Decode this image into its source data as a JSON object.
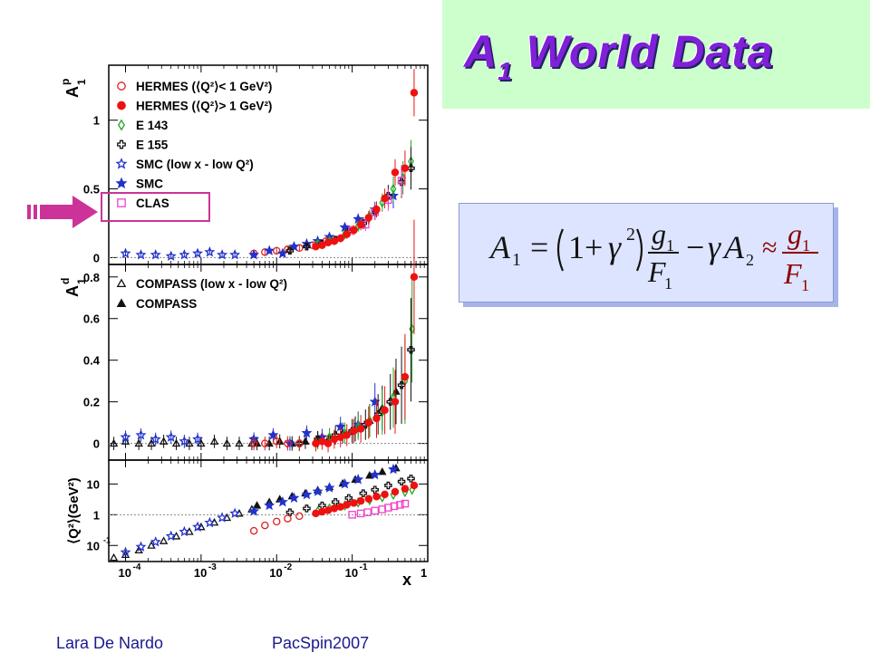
{
  "slide": {
    "title_main": "A",
    "title_sub": "1",
    "title_rest": " World Data",
    "footer_author": "Lara De Nardo",
    "footer_conference": "PacSpin2007",
    "colors": {
      "title": "#8020d8",
      "title_bg": "#ccffcc",
      "footer": "#1a1a8c",
      "formula_text": "#141414",
      "formula_approx": "#8b0000",
      "arrow": "#cc3399",
      "highlight_box": "#cc3399"
    }
  },
  "formula": {
    "lhs": "A",
    "lhs_sub": "1",
    "eq": "=",
    "one_plus": "1+",
    "gamma": "γ",
    "exp2": "2",
    "num": "g",
    "num_sub": "1",
    "den": "F",
    "den_sub": "1",
    "minus": "−",
    "gamma2": "γ",
    "a2": "A",
    "a2_sub": "2",
    "approx": "≈",
    "rnum": "g",
    "rnum_sub": "1",
    "rden": "F",
    "rden_sub": "1"
  },
  "chart_data": {
    "type": "scatter",
    "x_axis": {
      "label": "x",
      "scale": "log",
      "range": [
        6e-05,
        1
      ],
      "ticks": [
        "10",
        "10",
        "10",
        "10",
        "1"
      ],
      "tick_exps": [
        "-4",
        "-3",
        "-2",
        "-1",
        ""
      ]
    },
    "panels": [
      {
        "id": "proton",
        "ylabel": "A",
        "ylabel_sup": "p",
        "ylabel_sub": "1",
        "ylim": [
          -0.05,
          1.4
        ],
        "yticks": [
          "0",
          "0.5",
          "1"
        ],
        "legend": [
          {
            "name": "HERMES (⟨Q²⟩< 1 GeV²)",
            "marker": "circle-open",
            "color": "#dd2222"
          },
          {
            "name": "HERMES (⟨Q²⟩> 1 GeV²)",
            "marker": "circle-filled",
            "color": "#ee1111"
          },
          {
            "name": "E 143",
            "marker": "diamond-open",
            "color": "#22aa22"
          },
          {
            "name": "E 155",
            "marker": "cross-open",
            "color": "#111111"
          },
          {
            "name": "SMC (low x - low Q²)",
            "marker": "star-open",
            "color": "#2233cc"
          },
          {
            "name": "SMC",
            "marker": "star-filled",
            "color": "#2233cc"
          },
          {
            "name": "CLAS",
            "marker": "square-open",
            "color": "#ee44cc"
          }
        ],
        "series": [
          {
            "name": "SMC (low x - low Q²)",
            "x": [
              0.0001,
              0.00016,
              0.00025,
              0.0004,
              0.0006,
              0.0009,
              0.0013,
              0.0019,
              0.0028
            ],
            "y": [
              0.03,
              0.02,
              0.02,
              0.01,
              0.02,
              0.03,
              0.04,
              0.02,
              0.02
            ]
          },
          {
            "name": "HERMES (⟨Q²⟩< 1 GeV²)",
            "x": [
              0.005,
              0.007,
              0.01,
              0.014,
              0.02,
              0.03,
              0.045
            ],
            "y": [
              0.03,
              0.04,
              0.05,
              0.06,
              0.07,
              0.09,
              0.12
            ]
          },
          {
            "name": "SMC",
            "x": [
              0.005,
              0.008,
              0.012,
              0.017,
              0.025,
              0.035,
              0.05,
              0.08,
              0.12,
              0.2,
              0.35
            ],
            "y": [
              0.02,
              0.05,
              0.03,
              0.08,
              0.1,
              0.12,
              0.15,
              0.22,
              0.28,
              0.35,
              0.45
            ]
          },
          {
            "name": "E 143",
            "x": [
              0.035,
              0.05,
              0.08,
              0.12,
              0.17,
              0.25,
              0.35,
              0.47,
              0.6
            ],
            "y": [
              0.1,
              0.12,
              0.17,
              0.23,
              0.3,
              0.4,
              0.5,
              0.58,
              0.7
            ]
          },
          {
            "name": "E 155",
            "x": [
              0.015,
              0.025,
              0.04,
              0.06,
              0.09,
              0.14,
              0.2,
              0.3,
              0.45,
              0.6
            ],
            "y": [
              0.05,
              0.08,
              0.1,
              0.13,
              0.19,
              0.25,
              0.33,
              0.45,
              0.55,
              0.65
            ]
          },
          {
            "name": "CLAS",
            "x": [
              0.1,
              0.15,
              0.2,
              0.3,
              0.45
            ],
            "y": [
              0.2,
              0.24,
              0.33,
              0.42,
              0.56
            ]
          },
          {
            "name": "HERMES (⟨Q²⟩> 1 GeV²)",
            "x": [
              0.033,
              0.04,
              0.048,
              0.058,
              0.07,
              0.085,
              0.105,
              0.13,
              0.165,
              0.21,
              0.27,
              0.37,
              0.5,
              0.66
            ],
            "y": [
              0.08,
              0.09,
              0.11,
              0.12,
              0.14,
              0.17,
              0.2,
              0.24,
              0.29,
              0.35,
              0.43,
              0.62,
              0.65,
              1.2
            ]
          }
        ]
      },
      {
        "id": "deuteron",
        "ylabel": "A",
        "ylabel_sup": "d",
        "ylabel_sub": "1",
        "ylim": [
          -0.08,
          0.86
        ],
        "yticks": [
          "0",
          "0.2",
          "0.4",
          "0.6",
          "0.8"
        ],
        "legend": [
          {
            "name": "COMPASS (low x - low Q²)",
            "marker": "triangle-open",
            "color": "#111111"
          },
          {
            "name": "COMPASS",
            "marker": "triangle-filled",
            "color": "#111111"
          }
        ],
        "series": [
          {
            "name": "COMPASS (low x - low Q²)",
            "x": [
              7e-05,
              0.0001,
              0.00015,
              0.00022,
              0.00032,
              0.00047,
              0.0007,
              0.001,
              0.0015,
              0.0022,
              0.0032,
              0.0047
            ],
            "y": [
              0.0,
              0.01,
              0.0,
              0.0,
              0.01,
              0.0,
              0.0,
              0.0,
              0.01,
              0.0,
              0.0,
              0.0
            ]
          },
          {
            "name": "COMPASS",
            "x": [
              0.0055,
              0.008,
              0.011,
              0.016,
              0.024,
              0.035,
              0.05,
              0.075,
              0.11,
              0.17,
              0.25,
              0.38
            ],
            "y": [
              0.0,
              0.0,
              0.01,
              0.0,
              0.01,
              0.02,
              0.03,
              0.05,
              0.07,
              0.11,
              0.17,
              0.25
            ]
          },
          {
            "name": "SMC (low x - low Q²)",
            "x": [
              0.0001,
              0.00016,
              0.00025,
              0.0004,
              0.0006,
              0.0009
            ],
            "y": [
              0.03,
              0.04,
              0.02,
              0.03,
              0.01,
              0.02
            ]
          },
          {
            "name": "SMC",
            "x": [
              0.005,
              0.009,
              0.015,
              0.025,
              0.04,
              0.07,
              0.12,
              0.2
            ],
            "y": [
              0.02,
              0.04,
              0.0,
              0.05,
              0.03,
              0.08,
              0.09,
              0.2
            ]
          },
          {
            "name": "E 143",
            "x": [
              0.035,
              0.05,
              0.08,
              0.12,
              0.17,
              0.25,
              0.35,
              0.5,
              0.62
            ],
            "y": [
              0.01,
              0.03,
              0.05,
              0.08,
              0.11,
              0.15,
              0.22,
              0.3,
              0.55
            ]
          },
          {
            "name": "E 155",
            "x": [
              0.02,
              0.035,
              0.06,
              0.1,
              0.15,
              0.22,
              0.32,
              0.45,
              0.6
            ],
            "y": [
              0.0,
              0.02,
              0.04,
              0.06,
              0.09,
              0.14,
              0.2,
              0.28,
              0.45
            ]
          },
          {
            "name": "HERMES (⟨Q²⟩< 1 GeV²)",
            "x": [
              0.005,
              0.007,
              0.01,
              0.014,
              0.02
            ],
            "y": [
              0.0,
              0.0,
              0.01,
              0.0,
              0.0
            ]
          },
          {
            "name": "HERMES (⟨Q²⟩> 1 GeV²)",
            "x": [
              0.033,
              0.04,
              0.048,
              0.058,
              0.07,
              0.085,
              0.105,
              0.13,
              0.165,
              0.21,
              0.27,
              0.37,
              0.5,
              0.66
            ],
            "y": [
              0.0,
              0.01,
              0.0,
              0.02,
              0.03,
              0.04,
              0.06,
              0.07,
              0.1,
              0.12,
              0.16,
              0.2,
              0.32,
              0.8
            ]
          }
        ]
      },
      {
        "id": "q2",
        "ylabel": "⟨Q²⟩(GeV²)",
        "yscale": "log",
        "ylim": [
          0.03,
          60
        ],
        "yticks": [
          "10",
          "1",
          "10"
        ],
        "ytick_exps": [
          "",
          "",
          "-1"
        ],
        "series": [
          {
            "name": "COMPASS (low x - low Q²)",
            "x": [
              7e-05,
              0.0001,
              0.00015,
              0.00022,
              0.00032,
              0.00047,
              0.0007,
              0.001,
              0.0015,
              0.0022,
              0.0032,
              0.0047
            ],
            "y": [
              0.04,
              0.05,
              0.07,
              0.1,
              0.14,
              0.2,
              0.28,
              0.4,
              0.56,
              0.8,
              1.1,
              1.5
            ]
          },
          {
            "name": "SMC (low x - low Q²)",
            "x": [
              0.0001,
              0.00016,
              0.00025,
              0.0004,
              0.0006,
              0.0009,
              0.0013,
              0.0019,
              0.0028
            ],
            "y": [
              0.06,
              0.09,
              0.13,
              0.2,
              0.28,
              0.4,
              0.55,
              0.8,
              1.1
            ]
          },
          {
            "name": "COMPASS",
            "x": [
              0.0055,
              0.008,
              0.011,
              0.016,
              0.024,
              0.035,
              0.05,
              0.075,
              0.11,
              0.17,
              0.25,
              0.38
            ],
            "y": [
              2,
              2.6,
              3.2,
              4,
              5,
              6.3,
              8,
              10.5,
              14,
              19,
              25,
              33
            ]
          },
          {
            "name": "SMC",
            "x": [
              0.005,
              0.008,
              0.012,
              0.017,
              0.025,
              0.035,
              0.05,
              0.08,
              0.12,
              0.2,
              0.35
            ],
            "y": [
              1.3,
              2,
              2.6,
              3.5,
              4.5,
              5.7,
              7.5,
              10,
              14,
              20,
              30
            ]
          },
          {
            "name": "E 155",
            "x": [
              0.015,
              0.025,
              0.04,
              0.06,
              0.09,
              0.14,
              0.2,
              0.3,
              0.45,
              0.6
            ],
            "y": [
              1.2,
              1.6,
              2,
              2.6,
              3.5,
              5,
              6.5,
              9,
              12,
              15
            ]
          },
          {
            "name": "E 143",
            "x": [
              0.035,
              0.05,
              0.08,
              0.12,
              0.17,
              0.25,
              0.35,
              0.5,
              0.62
            ],
            "y": [
              1.3,
              1.6,
              2,
              2.5,
              3,
              3.7,
              4.5,
              5.5,
              6.5
            ]
          },
          {
            "name": "HERMES (⟨Q²⟩< 1 GeV²)",
            "x": [
              0.005,
              0.007,
              0.01,
              0.014,
              0.02
            ],
            "y": [
              0.3,
              0.45,
              0.6,
              0.75,
              0.9
            ]
          },
          {
            "name": "CLAS",
            "x": [
              0.1,
              0.13,
              0.16,
              0.2,
              0.25,
              0.3,
              0.36,
              0.43,
              0.5
            ],
            "y": [
              1.0,
              1.1,
              1.2,
              1.35,
              1.5,
              1.7,
              1.9,
              2.1,
              2.3
            ]
          },
          {
            "name": "HERMES (⟨Q²⟩> 1 GeV²)",
            "x": [
              0.033,
              0.04,
              0.048,
              0.058,
              0.07,
              0.085,
              0.105,
              0.13,
              0.165,
              0.21,
              0.27,
              0.37,
              0.5,
              0.66
            ],
            "y": [
              1.1,
              1.25,
              1.4,
              1.6,
              1.8,
              2.1,
              2.4,
              2.8,
              3.3,
              3.9,
              4.6,
              5.6,
              7,
              9
            ]
          }
        ]
      }
    ]
  }
}
